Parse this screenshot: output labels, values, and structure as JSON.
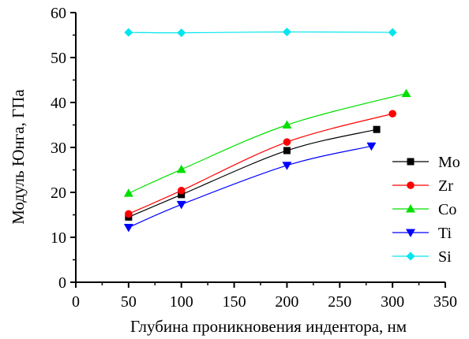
{
  "chart_data": {
    "type": "line",
    "title": "",
    "xlabel": "Глубина проникновения индентора, нм",
    "ylabel": "Модуль Юнга, ГПа",
    "xlim": [
      0,
      350
    ],
    "ylim": [
      0,
      60
    ],
    "xticks": [
      0,
      50,
      100,
      150,
      200,
      250,
      300,
      350
    ],
    "yticks": [
      0,
      10,
      20,
      30,
      40,
      50,
      60
    ],
    "xtick_labels": [
      "0",
      "50",
      "100",
      "150",
      "200",
      "250",
      "300",
      "350"
    ],
    "ytick_labels": [
      "0",
      "10",
      "20",
      "30",
      "40",
      "50",
      "60"
    ],
    "grid": false,
    "legend_position": "right",
    "series": [
      {
        "name": "Mo",
        "marker": "square",
        "color": "#000000",
        "x": [
          50,
          100,
          200,
          285
        ],
        "y": [
          14.5,
          19.5,
          29.3,
          34.0
        ]
      },
      {
        "name": "Zr",
        "marker": "circle",
        "color": "#ff0000",
        "x": [
          50,
          100,
          200,
          300
        ],
        "y": [
          15.2,
          20.4,
          31.2,
          37.5
        ]
      },
      {
        "name": "Co",
        "marker": "triangle-up",
        "color": "#00e000",
        "x": [
          50,
          100,
          200,
          313
        ],
        "y": [
          19.8,
          25.1,
          35.0,
          42.0
        ]
      },
      {
        "name": "Ti",
        "marker": "triangle-down",
        "color": "#0000ff",
        "x": [
          50,
          100,
          200,
          280
        ],
        "y": [
          12.2,
          17.3,
          26.0,
          30.3
        ]
      },
      {
        "name": "Si",
        "marker": "diamond",
        "color": "#00e5ee",
        "x": [
          50,
          100,
          200,
          300
        ],
        "y": [
          55.6,
          55.5,
          55.7,
          55.6
        ]
      }
    ]
  }
}
